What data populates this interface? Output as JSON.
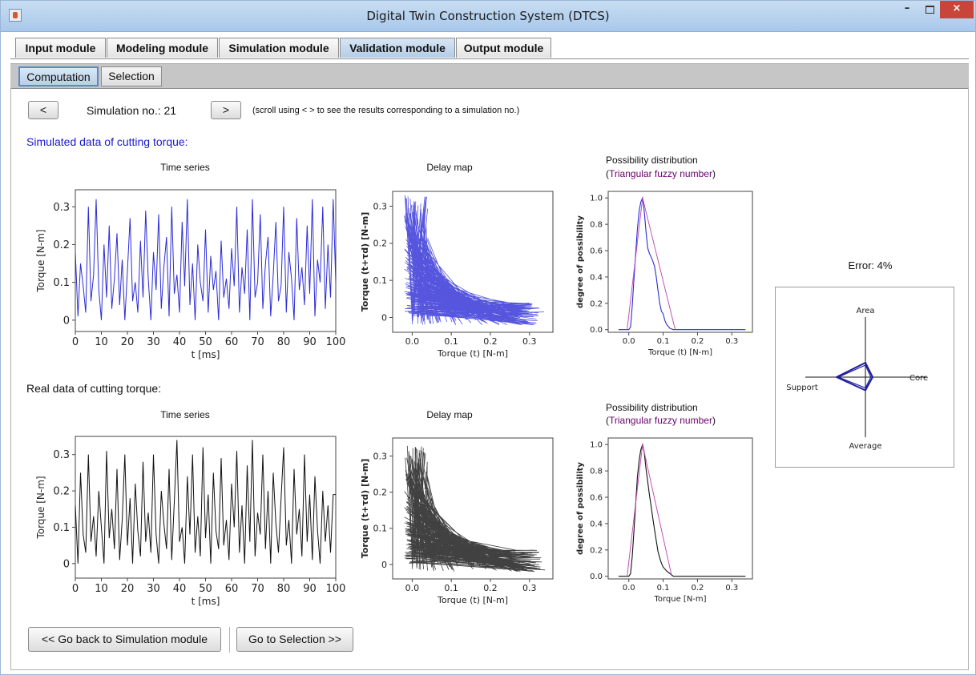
{
  "window": {
    "title": "Digital Twin Construction System (DTCS)",
    "close_glyph": "×",
    "minimize_glyph": "–"
  },
  "main_tabs": [
    {
      "label": "Input module"
    },
    {
      "label": "Modeling module"
    },
    {
      "label": "Simulation module"
    },
    {
      "label": "Validation module",
      "active": true
    },
    {
      "label": "Output module"
    }
  ],
  "sub_tabs": [
    {
      "label": "Computation",
      "active": true
    },
    {
      "label": "Selection"
    }
  ],
  "nav": {
    "prev_label": "<",
    "next_label": ">",
    "sim_label": "Simulation no.: 21",
    "hint": "(scroll using < > to see the results corresponding to a simulation no.)"
  },
  "sections": {
    "simulated_title": "Simulated data of cutting torque:",
    "real_title": "Real data of cutting torque:"
  },
  "plots": {
    "time_series_title": "Time series",
    "delay_map_title": "Delay map",
    "possibility_title": "Possibility distribution",
    "possibility_subtitle_open": "(",
    "possibility_subtitle_mid": "Triangular fuzzy number",
    "possibility_subtitle_close": ")"
  },
  "error_label": "Error: 4%",
  "buttons": {
    "back": "<< Go back to Simulation module",
    "forward": "Go to Selection >>"
  },
  "colors": {
    "simulated": "#2b2bd6",
    "real": "#111111",
    "triangle": "#c040b0",
    "section_blue": "#1a1acc",
    "subtitle_purple": "#6a006a"
  },
  "chart_data": [
    {
      "type": "line",
      "id": "sim-time-series",
      "title": "Time series",
      "xlabel": "t [ms]",
      "ylabel": "Torque [N-m]",
      "xlim": [
        0,
        100
      ],
      "ylim": [
        -0.03,
        0.345
      ],
      "xticks": [
        "0",
        "10",
        "20",
        "30",
        "40",
        "50",
        "60",
        "70",
        "80",
        "90",
        "100"
      ],
      "yticks": [
        "0",
        "0.1",
        "0.2",
        "0.3"
      ],
      "series": [
        {
          "y": [
            0.18,
            0.01,
            0.15,
            0.09,
            0.02,
            0.3,
            0.05,
            0.12,
            0.32,
            0.08,
            0.0,
            0.2,
            0.06,
            0.25,
            0.03,
            0.11,
            0.23,
            0.04,
            0.16,
            0.0,
            0.13,
            0.27,
            0.05,
            0.1,
            0.02,
            0.21,
            0.06,
            0.29,
            0.11,
            0.0,
            0.18,
            0.08,
            0.28,
            0.03,
            0.14,
            0.22,
            0.01,
            0.3,
            0.07,
            0.12,
            0.02,
            0.26,
            0.09,
            0.32,
            0.04,
            0.15,
            0.0,
            0.2,
            0.1,
            0.05,
            0.24,
            0.02,
            0.17,
            0.08,
            0.13,
            0.0,
            0.21,
            0.06,
            0.11,
            0.03,
            0.19,
            0.09,
            0.3,
            0.02,
            0.14,
            0.07,
            0.24,
            0.0,
            0.32,
            0.06,
            0.1,
            0.28,
            0.03,
            0.15,
            0.22,
            0.01,
            0.12,
            0.26,
            0.05,
            0.09,
            0.3,
            0.02,
            0.18,
            0.11,
            0.0,
            0.27,
            0.08,
            0.14,
            0.04,
            0.25,
            0.07,
            0.32,
            0.01,
            0.16,
            0.1,
            0.3,
            0.03,
            0.2,
            0.06,
            0.32,
            0.1
          ]
        }
      ]
    },
    {
      "type": "line",
      "id": "real-time-series",
      "title": "Time series",
      "xlabel": "t [ms]",
      "ylabel": "Torque [N-m]",
      "xlim": [
        0,
        100
      ],
      "ylim": [
        -0.04,
        0.35
      ],
      "xticks": [
        "0",
        "10",
        "20",
        "30",
        "40",
        "50",
        "60",
        "70",
        "80",
        "90",
        "100"
      ],
      "yticks": [
        "0",
        "0.1",
        "0.2",
        "0.3"
      ],
      "series": [
        {
          "y": [
            0.16,
            0.0,
            0.25,
            0.08,
            0.03,
            0.3,
            0.06,
            0.13,
            0.02,
            0.2,
            0.1,
            0.0,
            0.31,
            0.07,
            0.15,
            0.04,
            0.26,
            0.01,
            0.12,
            0.3,
            0.05,
            0.18,
            0.0,
            0.22,
            0.09,
            0.02,
            0.28,
            0.06,
            0.14,
            0.03,
            0.3,
            0.08,
            0.0,
            0.2,
            0.11,
            0.04,
            0.26,
            0.01,
            0.17,
            0.34,
            0.06,
            0.1,
            0.0,
            0.24,
            0.08,
            0.3,
            0.03,
            0.13,
            0.02,
            0.32,
            0.07,
            0.19,
            0.0,
            0.25,
            0.09,
            0.04,
            0.29,
            0.05,
            0.12,
            0.01,
            0.22,
            0.1,
            0.31,
            0.03,
            0.16,
            0.0,
            0.27,
            0.06,
            0.34,
            0.02,
            0.14,
            0.08,
            0.3,
            0.04,
            0.2,
            0.0,
            0.25,
            0.11,
            0.03,
            0.18,
            0.32,
            0.05,
            0.12,
            0.0,
            0.26,
            0.08,
            0.15,
            0.02,
            0.3,
            0.06,
            0.19,
            0.01,
            0.24,
            0.09,
            0.0,
            0.2,
            0.06,
            0.16,
            0.03,
            0.19,
            0.19
          ]
        }
      ]
    },
    {
      "type": "scatter",
      "id": "sim-delay-map",
      "title": "Delay map",
      "xlabel": "Torque (t) [N-m]",
      "ylabel": "Torque (t+τd) [N-m]",
      "xlim": [
        -0.05,
        0.36
      ],
      "ylim": [
        -0.04,
        0.34
      ],
      "xticks": [
        "0.0",
        "0.1",
        "0.2",
        "0.3"
      ],
      "yticks": [
        "0",
        "0.1",
        "0.2",
        "0.3"
      ],
      "lines_drawn": 260,
      "seed": 7
    },
    {
      "type": "scatter",
      "id": "real-delay-map",
      "title": "Delay map",
      "xlabel": "Torque (t) [N-m]",
      "ylabel": "Torque (t+τd) [N-m]",
      "xlim": [
        -0.05,
        0.36
      ],
      "ylim": [
        -0.04,
        0.35
      ],
      "xticks": [
        "0.0",
        "0.1",
        "0.2",
        "0.3"
      ],
      "yticks": [
        "0",
        "0.1",
        "0.2",
        "0.3"
      ],
      "lines_drawn": 260,
      "seed": 19
    },
    {
      "type": "line",
      "id": "sim-possibility",
      "title": "Possibility distribution",
      "xlabel": "Torque (t) [N-m]",
      "ylabel": "degree of possibility",
      "xlim": [
        -0.06,
        0.36
      ],
      "ylim": [
        -0.02,
        1.05
      ],
      "xticks": [
        "0.0",
        "0.1",
        "0.2",
        "0.3"
      ],
      "yticks": [
        "0.0",
        "0.2",
        "0.4",
        "0.6",
        "0.8",
        "1.0"
      ],
      "series": [
        {
          "name": "distribution",
          "x": [
            -0.03,
            0.0,
            0.005,
            0.01,
            0.015,
            0.02,
            0.025,
            0.03,
            0.035,
            0.04,
            0.045,
            0.05,
            0.055,
            0.06,
            0.065,
            0.07,
            0.075,
            0.08,
            0.085,
            0.09,
            0.095,
            0.1,
            0.105,
            0.11,
            0.12,
            0.13,
            0.2,
            0.34
          ],
          "y": [
            0.0,
            0.0,
            0.02,
            0.18,
            0.38,
            0.58,
            0.76,
            0.9,
            0.97,
            1.0,
            0.9,
            0.75,
            0.62,
            0.58,
            0.55,
            0.52,
            0.48,
            0.4,
            0.3,
            0.2,
            0.14,
            0.12,
            0.07,
            0.04,
            0.01,
            0.0,
            0.0,
            0.0
          ]
        },
        {
          "name": "triangle",
          "x": [
            -0.005,
            0.04,
            0.135
          ],
          "y": [
            0.0,
            1.0,
            0.0
          ]
        }
      ]
    },
    {
      "type": "line",
      "id": "real-possibility",
      "title": "Possibility distribution",
      "xlabel": "Torque [N-m]",
      "ylabel": "degree of possibility",
      "xlim": [
        -0.06,
        0.36
      ],
      "ylim": [
        -0.02,
        1.05
      ],
      "xticks": [
        "0.0",
        "0.1",
        "0.2",
        "0.3"
      ],
      "yticks": [
        "0.0",
        "0.2",
        "0.4",
        "0.6",
        "0.8",
        "1.0"
      ],
      "series": [
        {
          "name": "distribution",
          "x": [
            -0.03,
            0.0,
            0.005,
            0.01,
            0.015,
            0.02,
            0.025,
            0.03,
            0.035,
            0.04,
            0.045,
            0.05,
            0.055,
            0.06,
            0.065,
            0.07,
            0.075,
            0.08,
            0.085,
            0.09,
            0.095,
            0.1,
            0.11,
            0.12,
            0.13,
            0.2,
            0.34
          ],
          "y": [
            0.0,
            0.0,
            0.02,
            0.15,
            0.34,
            0.55,
            0.75,
            0.88,
            0.96,
            1.0,
            0.94,
            0.82,
            0.72,
            0.62,
            0.53,
            0.44,
            0.35,
            0.27,
            0.19,
            0.14,
            0.1,
            0.07,
            0.04,
            0.02,
            0.0,
            0.0,
            0.0
          ]
        },
        {
          "name": "triangle",
          "x": [
            -0.005,
            0.04,
            0.125
          ],
          "y": [
            0.0,
            1.0,
            0.0
          ]
        }
      ]
    },
    {
      "type": "radar",
      "id": "error-radar",
      "axes": [
        "Area",
        "Core",
        "Average",
        "Support"
      ],
      "series": [
        {
          "values": [
            0.24,
            0.12,
            0.22,
            0.48
          ]
        },
        {
          "values": [
            0.2,
            0.09,
            0.18,
            0.45
          ]
        }
      ]
    }
  ]
}
